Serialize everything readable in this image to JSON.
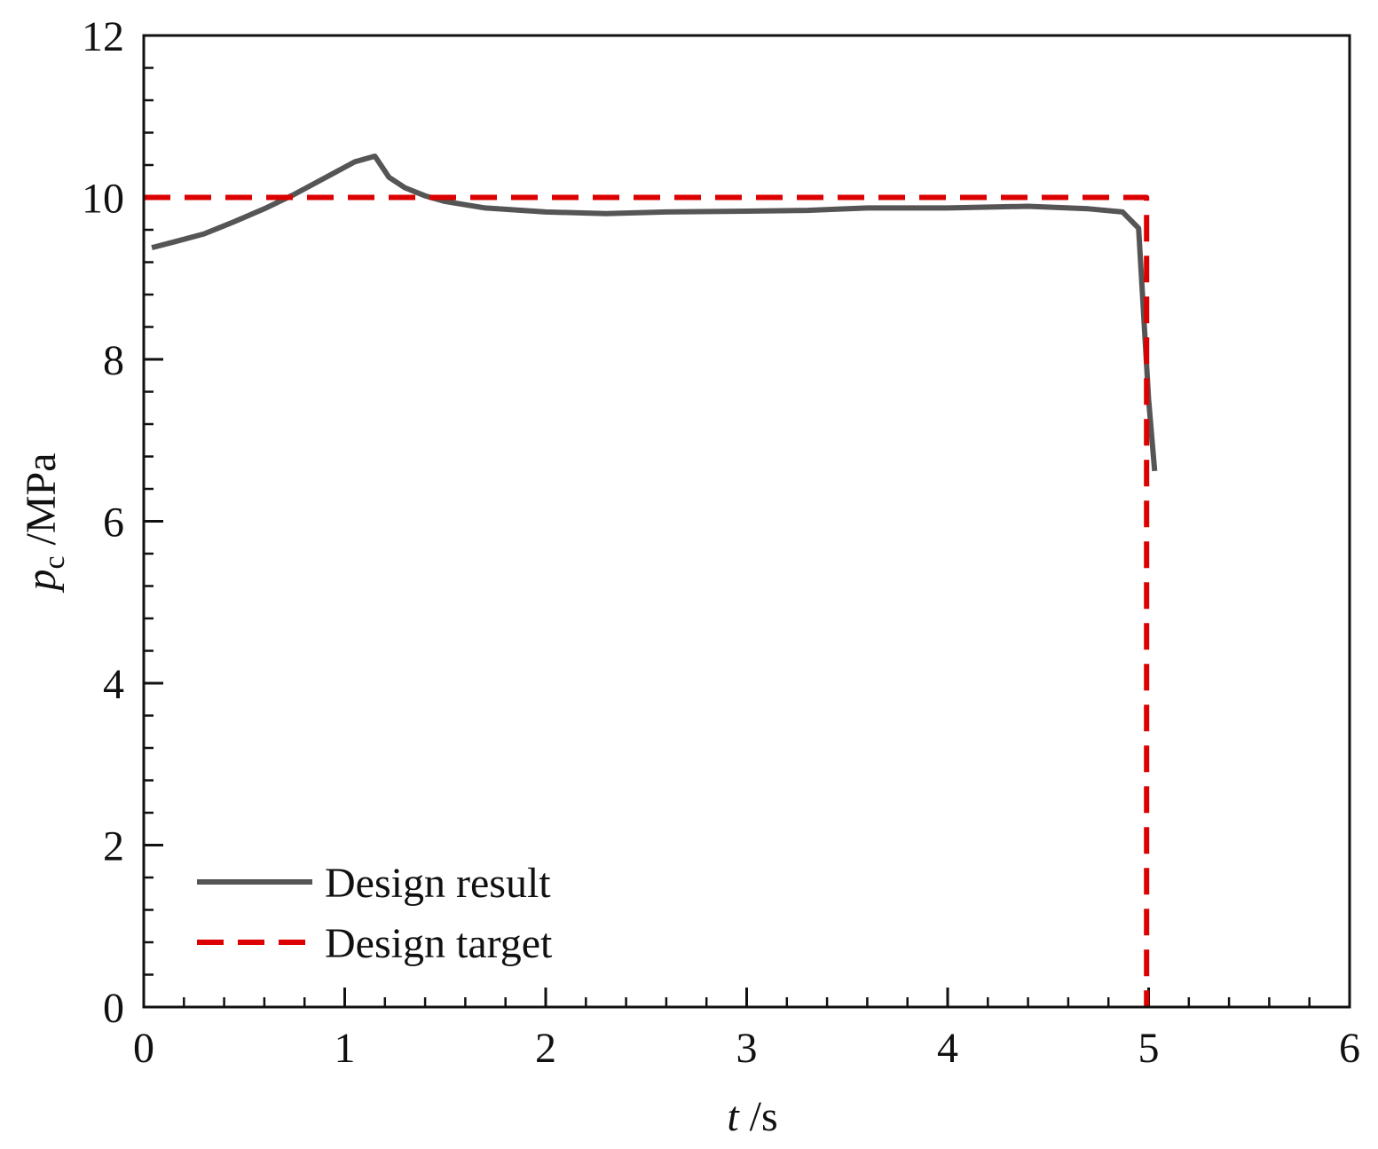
{
  "chart_data": {
    "type": "line",
    "xlabel": {
      "var": "t",
      "unit": " /s"
    },
    "ylabel": {
      "var": "p",
      "sub": "c",
      "unit": " /MPa"
    },
    "xlim": [
      0,
      6
    ],
    "ylim": [
      0,
      12
    ],
    "x_ticks": [
      "0",
      "1",
      "2",
      "3",
      "4",
      "5",
      "6"
    ],
    "y_ticks": [
      "0",
      "2",
      "4",
      "6",
      "8",
      "10",
      "12"
    ],
    "x_minor_step": 0.2,
    "y_minor_step": 0.4,
    "grid": false,
    "legend_position": "bottom-left",
    "series": [
      {
        "name": "Design result",
        "color": "#555555",
        "style": "solid",
        "x": [
          0.04,
          0.15,
          0.3,
          0.45,
          0.6,
          0.75,
          0.9,
          1.05,
          1.15,
          1.22,
          1.3,
          1.4,
          1.5,
          1.7,
          2.0,
          2.3,
          2.6,
          3.0,
          3.3,
          3.6,
          4.0,
          4.4,
          4.7,
          4.87,
          4.95,
          5.0,
          5.03
        ],
        "y": [
          9.38,
          9.45,
          9.55,
          9.7,
          9.86,
          10.04,
          10.24,
          10.44,
          10.51,
          10.25,
          10.12,
          10.02,
          9.95,
          9.87,
          9.82,
          9.8,
          9.82,
          9.83,
          9.84,
          9.87,
          9.87,
          9.89,
          9.86,
          9.82,
          9.62,
          7.5,
          6.62
        ]
      },
      {
        "name": "Design target",
        "color": "#dd0000",
        "style": "dashed",
        "x": [
          0,
          4.99,
          4.99
        ],
        "y": [
          10,
          10,
          0
        ]
      }
    ]
  }
}
